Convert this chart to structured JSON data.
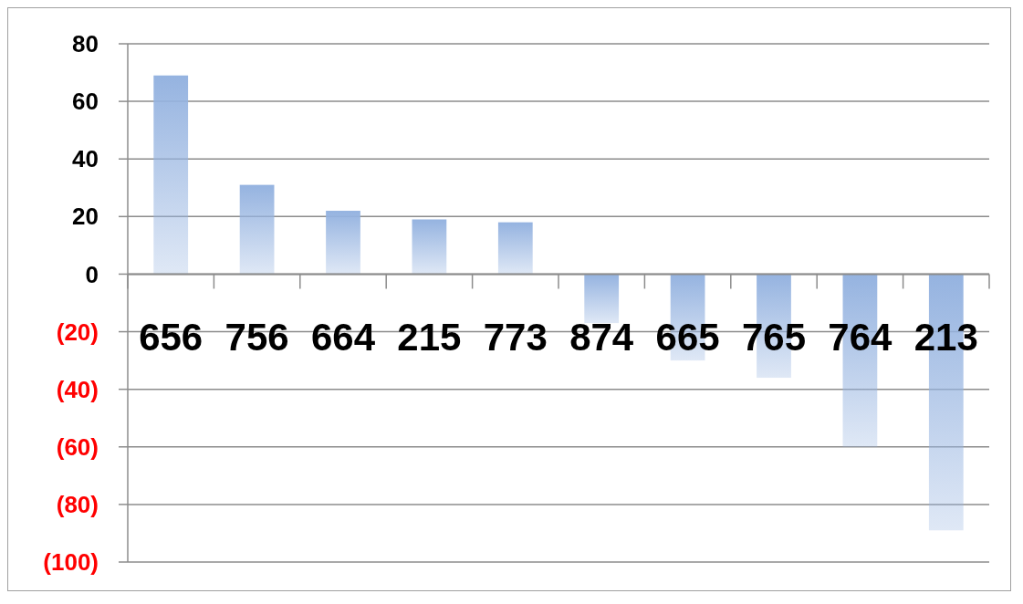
{
  "chart_data": {
    "type": "bar",
    "categories": [
      "656",
      "756",
      "664",
      "215",
      "773",
      "874",
      "665",
      "765",
      "764",
      "213"
    ],
    "series": [
      {
        "color": "#95b3e0",
        "values": [
          69,
          31,
          22,
          19,
          18,
          -17,
          -30,
          -36,
          -60,
          -89
        ]
      }
    ],
    "ylim": [
      -100,
      80
    ],
    "yticks": [
      80,
      60,
      40,
      20,
      0,
      {
        "value": -20,
        "label": "(20)"
      },
      {
        "value": -40,
        "label": "(40)"
      },
      {
        "value": -60,
        "label": "(60)"
      },
      {
        "value": -80,
        "label": "(80)"
      },
      {
        "value": -100,
        "label": "(100)"
      }
    ],
    "grid": "y"
  }
}
